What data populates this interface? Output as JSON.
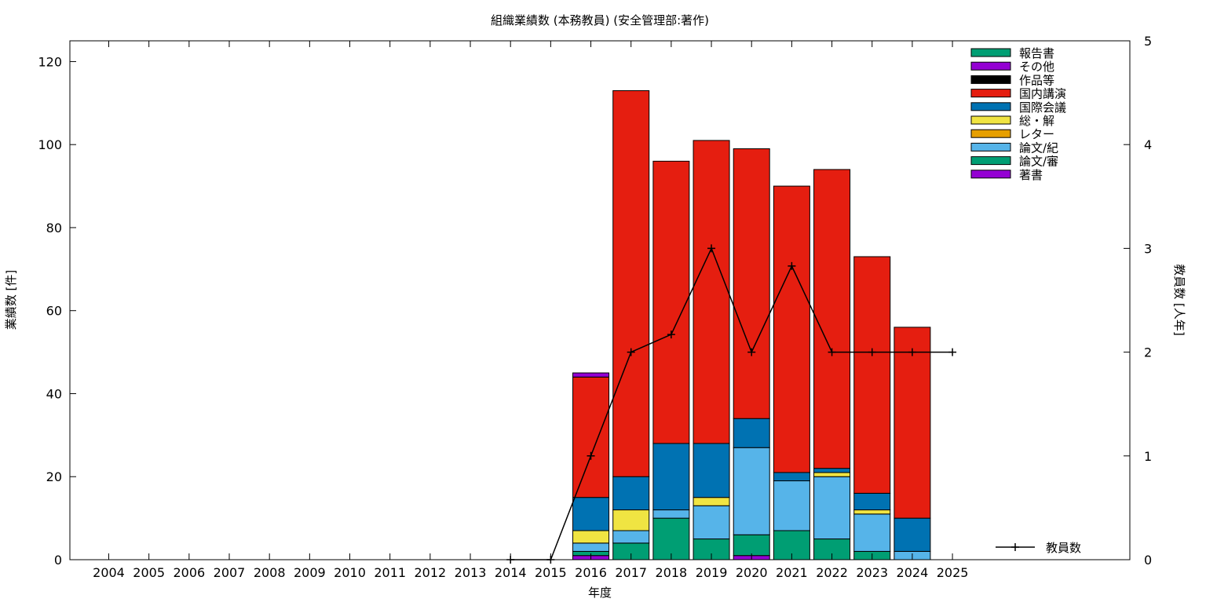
{
  "chart_data": {
    "type": "bar",
    "stacked": true,
    "title": "組織業績数 (本務教員) (安全管理部:著作)",
    "xlabel": "年度",
    "ylabel": "業績数 [件]",
    "y2label": "教員数 [人年]",
    "ylim": [
      0,
      125
    ],
    "y2lim": [
      0,
      5
    ],
    "yticks": [
      "0",
      "20",
      "40",
      "60",
      "80",
      "100",
      "120"
    ],
    "y2ticks": [
      "0",
      "1",
      "2",
      "3",
      "4",
      "5"
    ],
    "categories": [
      "2004",
      "2005",
      "2006",
      "2007",
      "2008",
      "2009",
      "2010",
      "2011",
      "2012",
      "2013",
      "2014",
      "2015",
      "2016",
      "2017",
      "2018",
      "2019",
      "2020",
      "2021",
      "2022",
      "2023",
      "2024",
      "2025"
    ],
    "grid": false,
    "legend_position": "top-right",
    "series": [
      {
        "name": "著書",
        "color": "#9400d3",
        "values": [
          0,
          0,
          0,
          0,
          0,
          0,
          0,
          0,
          0,
          0,
          0,
          0,
          1,
          0,
          0,
          0,
          1,
          0,
          0,
          0,
          0,
          0
        ]
      },
      {
        "name": "論文/審",
        "color": "#009e73",
        "values": [
          0,
          0,
          0,
          0,
          0,
          0,
          0,
          0,
          0,
          0,
          0,
          0,
          1,
          4,
          10,
          5,
          5,
          7,
          5,
          2,
          0,
          0
        ]
      },
      {
        "name": "論文/紀",
        "color": "#56b4e9",
        "values": [
          0,
          0,
          0,
          0,
          0,
          0,
          0,
          0,
          0,
          0,
          0,
          0,
          2,
          3,
          2,
          8,
          21,
          12,
          15,
          9,
          2,
          0
        ]
      },
      {
        "name": "レター",
        "color": "#e69f00",
        "values": [
          0,
          0,
          0,
          0,
          0,
          0,
          0,
          0,
          0,
          0,
          0,
          0,
          0,
          0,
          0,
          0,
          0,
          0,
          0,
          0,
          0,
          0
        ]
      },
      {
        "name": "総・解",
        "color": "#f0e442",
        "values": [
          0,
          0,
          0,
          0,
          0,
          0,
          0,
          0,
          0,
          0,
          0,
          0,
          3,
          5,
          0,
          2,
          0,
          0,
          1,
          1,
          0,
          0
        ]
      },
      {
        "name": "国際会議",
        "color": "#0072b2",
        "values": [
          0,
          0,
          0,
          0,
          0,
          0,
          0,
          0,
          0,
          0,
          0,
          0,
          8,
          8,
          16,
          13,
          7,
          2,
          1,
          4,
          8,
          0
        ]
      },
      {
        "name": "国内講演",
        "color": "#e51e10",
        "values": [
          0,
          0,
          0,
          0,
          0,
          0,
          0,
          0,
          0,
          0,
          0,
          0,
          29,
          93,
          68,
          73,
          65,
          69,
          72,
          57,
          46,
          0
        ]
      },
      {
        "name": "作品等",
        "color": "#000000",
        "values": [
          0,
          0,
          0,
          0,
          0,
          0,
          0,
          0,
          0,
          0,
          0,
          0,
          0,
          0,
          0,
          0,
          0,
          0,
          0,
          0,
          0,
          0
        ]
      },
      {
        "name": "その他",
        "color": "#9400d3",
        "values": [
          0,
          0,
          0,
          0,
          0,
          0,
          0,
          0,
          0,
          0,
          0,
          0,
          1,
          0,
          0,
          0,
          0,
          0,
          0,
          0,
          0,
          0
        ]
      },
      {
        "name": "報告書",
        "color": "#009e73",
        "values": [
          0,
          0,
          0,
          0,
          0,
          0,
          0,
          0,
          0,
          0,
          0,
          0,
          0,
          0,
          0,
          0,
          0,
          0,
          0,
          0,
          0,
          0
        ]
      }
    ],
    "line_series": {
      "name": "教員数",
      "axis": "y2",
      "color": "#000000",
      "x": [
        "2014",
        "2015",
        "2016",
        "2017",
        "2018",
        "2019",
        "2020",
        "2021",
        "2022",
        "2023",
        "2024",
        "2025"
      ],
      "values": [
        0,
        0,
        1,
        2,
        2.17,
        3,
        2,
        2.83,
        2,
        2,
        2,
        2
      ]
    }
  }
}
